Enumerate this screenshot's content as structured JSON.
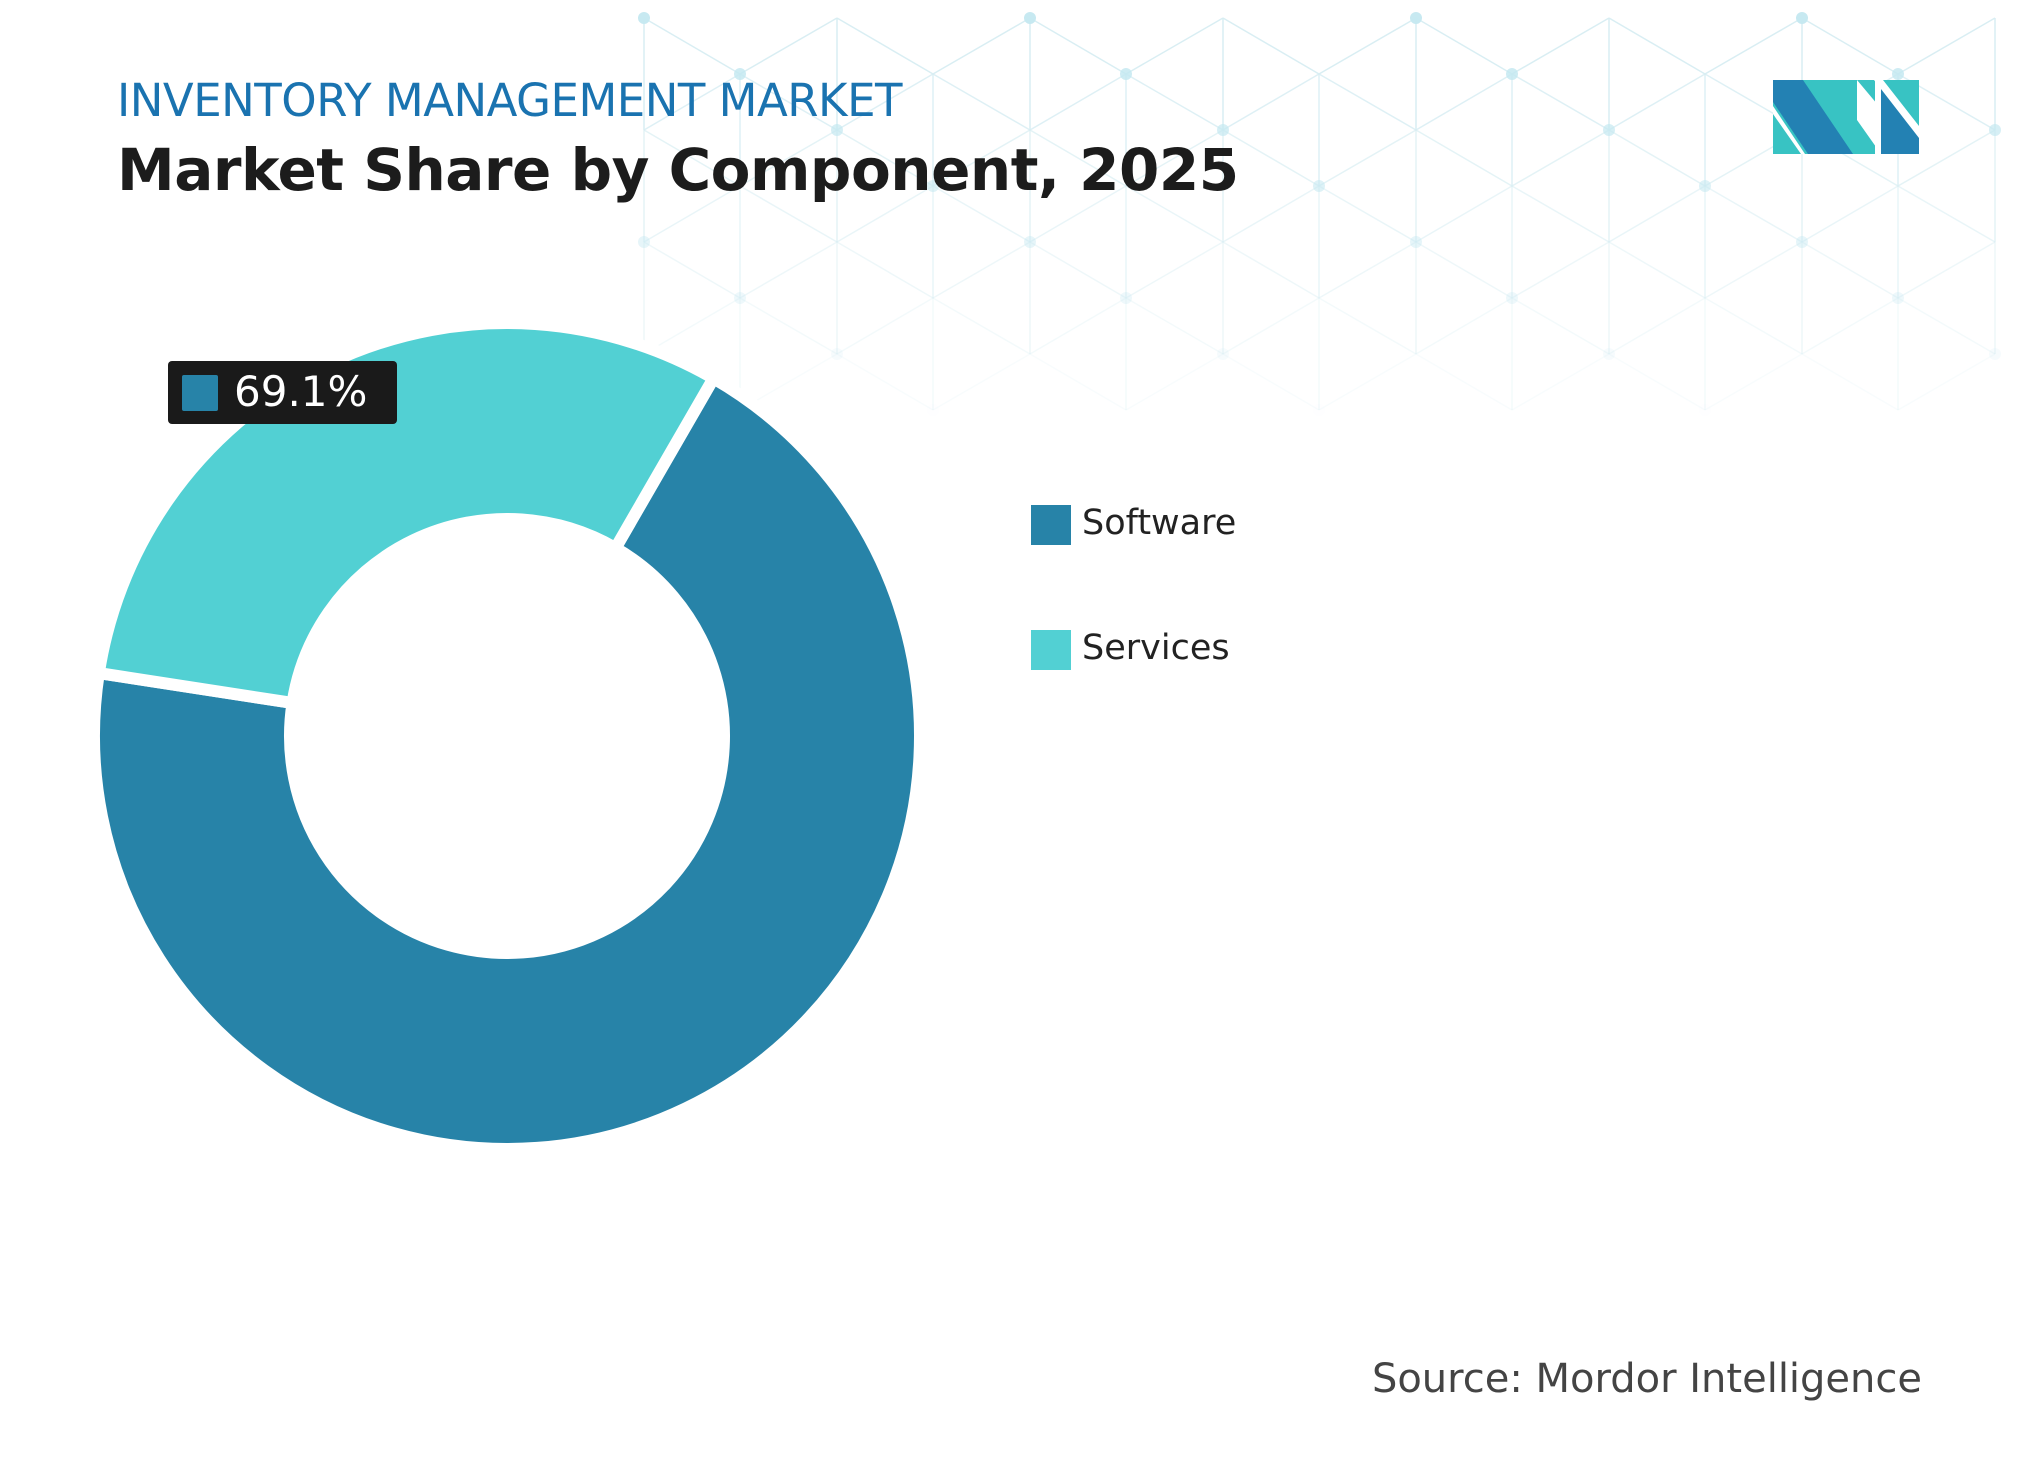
{
  "header": {
    "kicker": "INVENTORY MANAGEMENT MARKET",
    "title": "Market Share by Component, 2025"
  },
  "chart_data": {
    "type": "pie",
    "variant": "donut",
    "categories": [
      "Software",
      "Services"
    ],
    "values": [
      69.1,
      30.9
    ],
    "colors": [
      "#2783a8",
      "#52d0d3"
    ],
    "data_labels": [
      {
        "category": "Software",
        "text": "69.1%"
      }
    ],
    "legend": {
      "placement": "right",
      "entries": [
        "Software",
        "Services"
      ]
    }
  },
  "footer": {
    "source": "Source: Mordor Intelligence"
  },
  "logo": {
    "text": "MI",
    "colors": [
      "#2381b3",
      "#38c3c3"
    ]
  }
}
